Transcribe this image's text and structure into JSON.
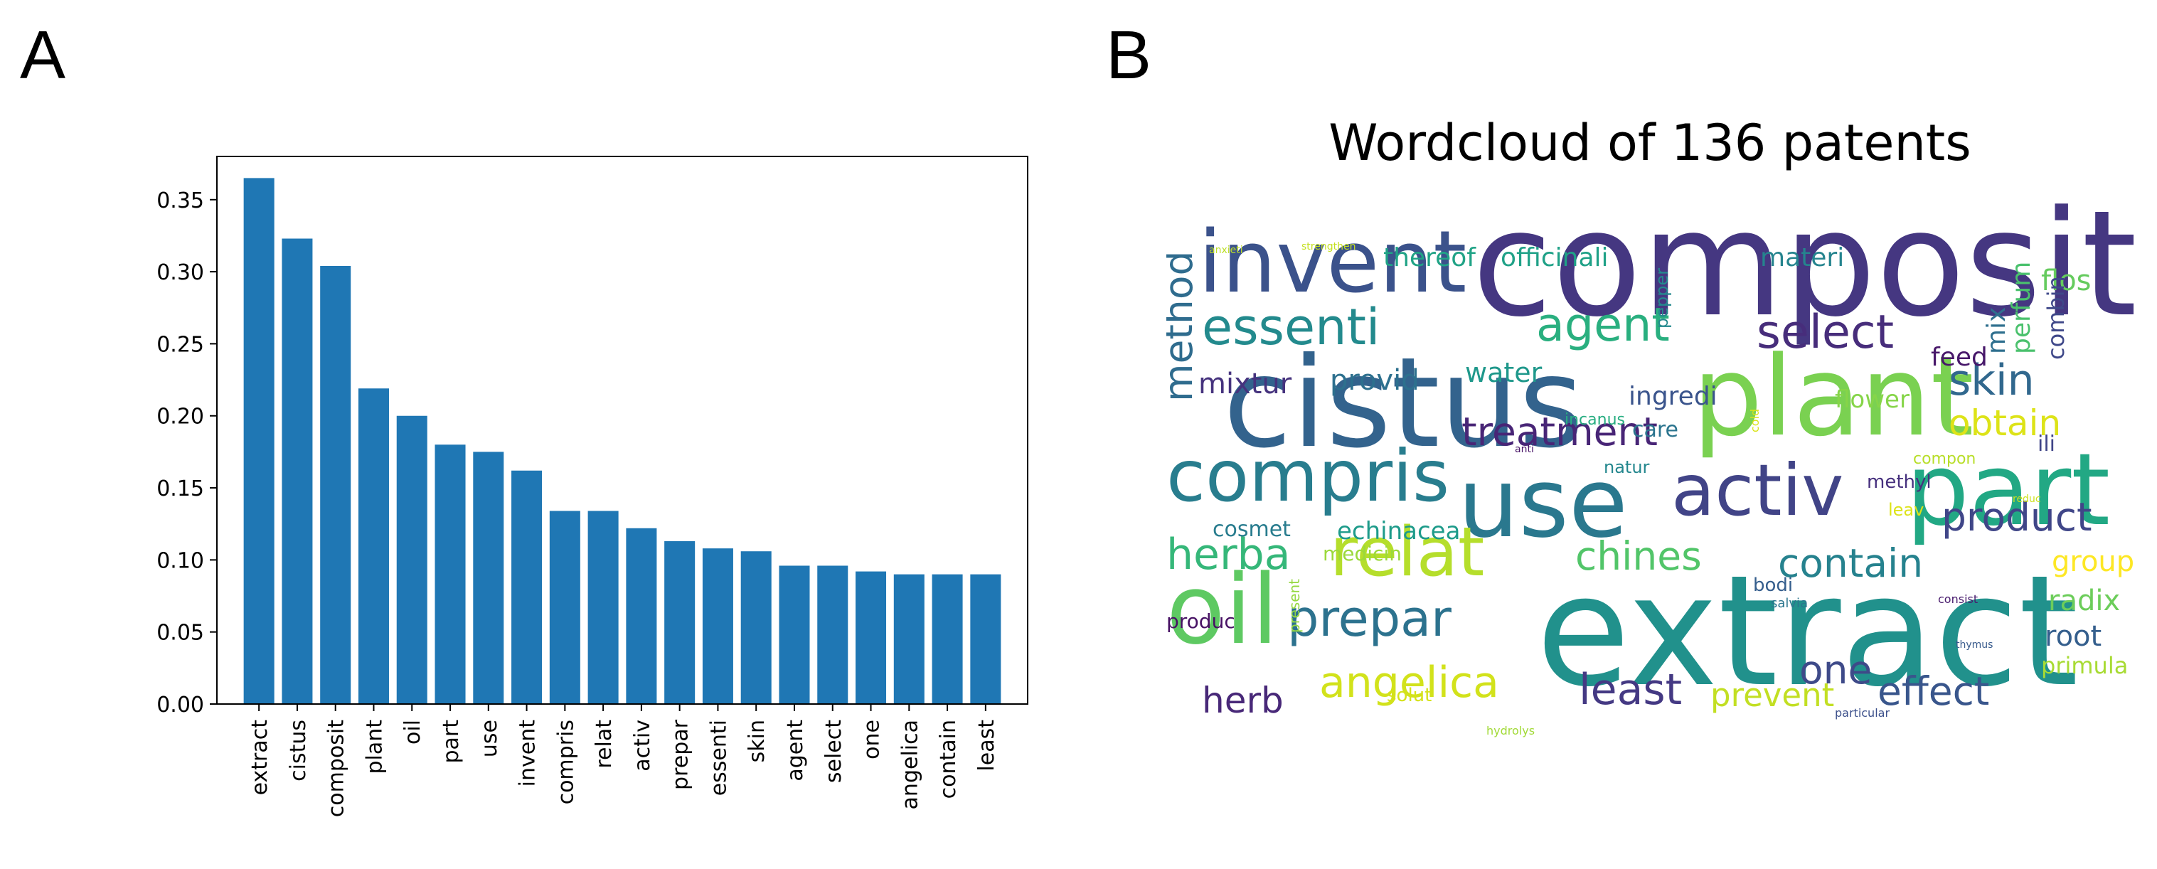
{
  "panels": {
    "a_label": "A",
    "b_label": "B"
  },
  "chart_data": [
    {
      "type": "bar",
      "categories": [
        "extract",
        "cistus",
        "composit",
        "plant",
        "oil",
        "part",
        "use",
        "invent",
        "compris",
        "relat",
        "activ",
        "prepar",
        "essenti",
        "skin",
        "agent",
        "select",
        "one",
        "angelica",
        "contain",
        "least"
      ],
      "values": [
        0.365,
        0.323,
        0.304,
        0.219,
        0.2,
        0.18,
        0.175,
        0.162,
        0.134,
        0.134,
        0.122,
        0.113,
        0.108,
        0.106,
        0.096,
        0.096,
        0.092,
        0.09,
        0.09,
        0.09
      ],
      "ylim": [
        0,
        0.38
      ],
      "yticks": [
        "0.00",
        "0.05",
        "0.10",
        "0.15",
        "0.20",
        "0.25",
        "0.30",
        "0.35"
      ],
      "color": "#1f77b4",
      "title": "",
      "xlabel": "",
      "ylabel": ""
    },
    {
      "type": "wordcloud",
      "title": "Wordcloud of 136 patents",
      "words": [
        {
          "text": "composit",
          "color": "#453781"
        },
        {
          "text": "extract",
          "color": "#21918c"
        },
        {
          "text": "cistus",
          "color": "#33638d"
        },
        {
          "text": "plant",
          "color": "#7ad151"
        },
        {
          "text": "part",
          "color": "#22a884"
        },
        {
          "text": "use",
          "color": "#2a788e"
        },
        {
          "text": "oil",
          "color": "#5ec962"
        },
        {
          "text": "invent",
          "color": "#3b528b"
        },
        {
          "text": "compris",
          "color": "#287d8e"
        },
        {
          "text": "activ",
          "color": "#414487"
        },
        {
          "text": "relat",
          "color": "#b5de2b"
        },
        {
          "text": "essenti",
          "color": "#238a8d"
        },
        {
          "text": "agent",
          "color": "#29af7f"
        },
        {
          "text": "select",
          "color": "#472d7b"
        },
        {
          "text": "prepar",
          "color": "#2c728e"
        },
        {
          "text": "treatment",
          "color": "#482576"
        },
        {
          "text": "angelica",
          "color": "#d2e21b"
        },
        {
          "text": "skin",
          "color": "#31688e"
        },
        {
          "text": "obtain",
          "color": "#dde318"
        },
        {
          "text": "herba",
          "color": "#35b779"
        },
        {
          "text": "method",
          "color": "#2f6c8e"
        },
        {
          "text": "contain",
          "color": "#26828e"
        },
        {
          "text": "chines",
          "color": "#52c569"
        },
        {
          "text": "least",
          "color": "#443983"
        },
        {
          "text": "one",
          "color": "#3e4a89"
        },
        {
          "text": "herb",
          "color": "#482878"
        },
        {
          "text": "effect",
          "color": "#39568c"
        },
        {
          "text": "product",
          "color": "#404688"
        },
        {
          "text": "prevent",
          "color": "#c2df23"
        },
        {
          "text": "group",
          "color": "#fde725"
        },
        {
          "text": "radix",
          "color": "#6ccd5a"
        },
        {
          "text": "root",
          "color": "#355f8d"
        },
        {
          "text": "primula",
          "color": "#a8db34"
        },
        {
          "text": "mixtur",
          "color": "#46337e"
        },
        {
          "text": "provid",
          "color": "#2d708e"
        },
        {
          "text": "water",
          "color": "#1f988b"
        },
        {
          "text": "thereof",
          "color": "#20a386"
        },
        {
          "text": "officinali",
          "color": "#1fa187"
        },
        {
          "text": "materi",
          "color": "#25848e"
        },
        {
          "text": "flos",
          "color": "#65cb5e"
        },
        {
          "text": "ingredi",
          "color": "#3a548c"
        },
        {
          "text": "feed",
          "color": "#48186a"
        },
        {
          "text": "mix",
          "color": "#2e6f8e"
        },
        {
          "text": "perfum",
          "color": "#4ac16d"
        },
        {
          "text": "combin",
          "color": "#3f4889"
        },
        {
          "text": "flower",
          "color": "#86d549"
        },
        {
          "text": "care",
          "color": "#2b748e"
        },
        {
          "text": "natur",
          "color": "#24878e"
        },
        {
          "text": "cosmet",
          "color": "#287c8e"
        },
        {
          "text": "echinacea",
          "color": "#1e9b8a"
        },
        {
          "text": "medicin",
          "color": "#9bd93c"
        },
        {
          "text": "bodi",
          "color": "#355e8d"
        },
        {
          "text": "produc",
          "color": "#471164"
        },
        {
          "text": "solut",
          "color": "#d5e21a"
        },
        {
          "text": "methyl",
          "color": "#46307e"
        },
        {
          "text": "leav",
          "color": "#dde318"
        },
        {
          "text": "compon",
          "color": "#b8de29"
        },
        {
          "text": "incanus",
          "color": "#27ad81"
        },
        {
          "text": "pepper",
          "color": "#23898e"
        },
        {
          "text": "ili",
          "color": "#404588"
        },
        {
          "text": "present",
          "color": "#95d840"
        },
        {
          "text": "hydrolys",
          "color": "#a2da37"
        },
        {
          "text": "particular",
          "color": "#3c508b"
        },
        {
          "text": "thymus",
          "color": "#375a8c"
        },
        {
          "text": "consist",
          "color": "#481b6d"
        },
        {
          "text": "anti",
          "color": "#481467"
        },
        {
          "text": "salvia",
          "color": "#2b758e"
        },
        {
          "text": "cold",
          "color": "#dae319"
        },
        {
          "text": "reduc",
          "color": "#cde11d"
        },
        {
          "text": "anxieti",
          "color": "#bddf26"
        },
        {
          "text": "strengthen",
          "color": "#c5e021"
        }
      ]
    }
  ]
}
